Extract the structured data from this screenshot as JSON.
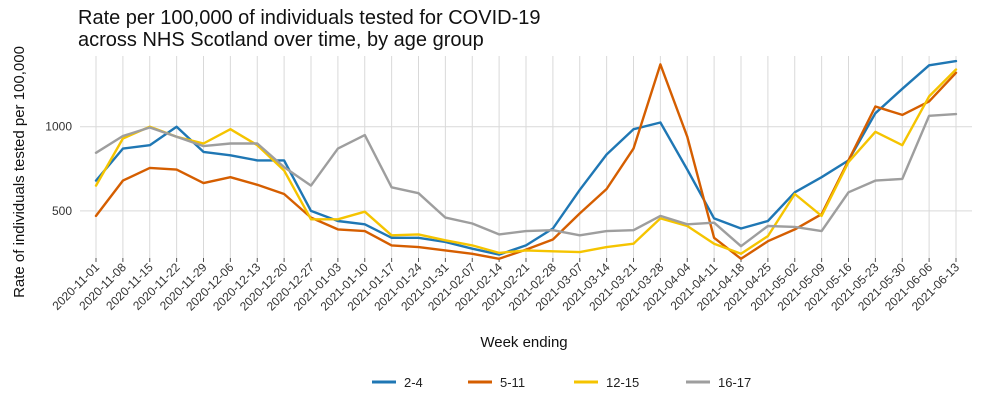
{
  "chart_data": {
    "type": "line",
    "title": [
      "Rate per 100,000 of individuals tested for COVID-19",
      "across NHS Scotland over time, by age group"
    ],
    "xlabel": "Week ending",
    "ylabel": "Rate of individuals tested per 100,000",
    "ylim": [
      220,
      1420
    ],
    "yticks": [
      500,
      1000
    ],
    "grid": true,
    "legend_placement": "bottom",
    "x": [
      "2020-11-01",
      "2020-11-08",
      "2020-11-15",
      "2020-11-22",
      "2020-11-29",
      "2020-12-06",
      "2020-12-13",
      "2020-12-20",
      "2020-12-27",
      "2021-01-03",
      "2021-01-10",
      "2021-01-17",
      "2021-01-24",
      "2021-01-31",
      "2021-02-07",
      "2021-02-14",
      "2021-02-21",
      "2021-02-28",
      "2021-03-07",
      "2021-03-14",
      "2021-03-21",
      "2021-03-28",
      "2021-04-04",
      "2021-04-11",
      "2021-04-18",
      "2021-04-25",
      "2021-05-02",
      "2021-05-09",
      "2021-05-16",
      "2021-05-23",
      "2021-05-30",
      "2021-06-06",
      "2021-06-13"
    ],
    "series": [
      {
        "name": "2-4",
        "color": "#1f77b4",
        "values": [
          680,
          870,
          890,
          1000,
          850,
          830,
          800,
          800,
          500,
          440,
          420,
          340,
          340,
          315,
          275,
          240,
          295,
          395,
          625,
          835,
          985,
          1025,
          745,
          455,
          395,
          440,
          610,
          700,
          800,
          1080,
          1225,
          1365,
          1390
        ]
      },
      {
        "name": "5-11",
        "color": "#d55e00",
        "values": [
          470,
          680,
          755,
          745,
          665,
          700,
          655,
          600,
          460,
          390,
          380,
          295,
          285,
          265,
          245,
          215,
          270,
          330,
          485,
          630,
          870,
          1370,
          940,
          340,
          215,
          320,
          390,
          480,
          800,
          1120,
          1070,
          1150,
          1320
        ]
      },
      {
        "name": "12-15",
        "color": "#f5c400",
        "values": [
          650,
          930,
          1000,
          940,
          900,
          985,
          890,
          740,
          450,
          450,
          495,
          355,
          360,
          325,
          295,
          250,
          265,
          260,
          255,
          285,
          305,
          455,
          410,
          305,
          245,
          350,
          600,
          470,
          790,
          970,
          890,
          1180,
          1340
        ]
      },
      {
        "name": "16-17",
        "color": "#9e9e9e",
        "values": [
          845,
          945,
          995,
          940,
          885,
          900,
          900,
          760,
          650,
          870,
          950,
          640,
          605,
          460,
          425,
          360,
          380,
          385,
          355,
          380,
          385,
          470,
          420,
          430,
          290,
          410,
          405,
          380,
          610,
          680,
          690,
          1065,
          1075
        ]
      }
    ]
  }
}
